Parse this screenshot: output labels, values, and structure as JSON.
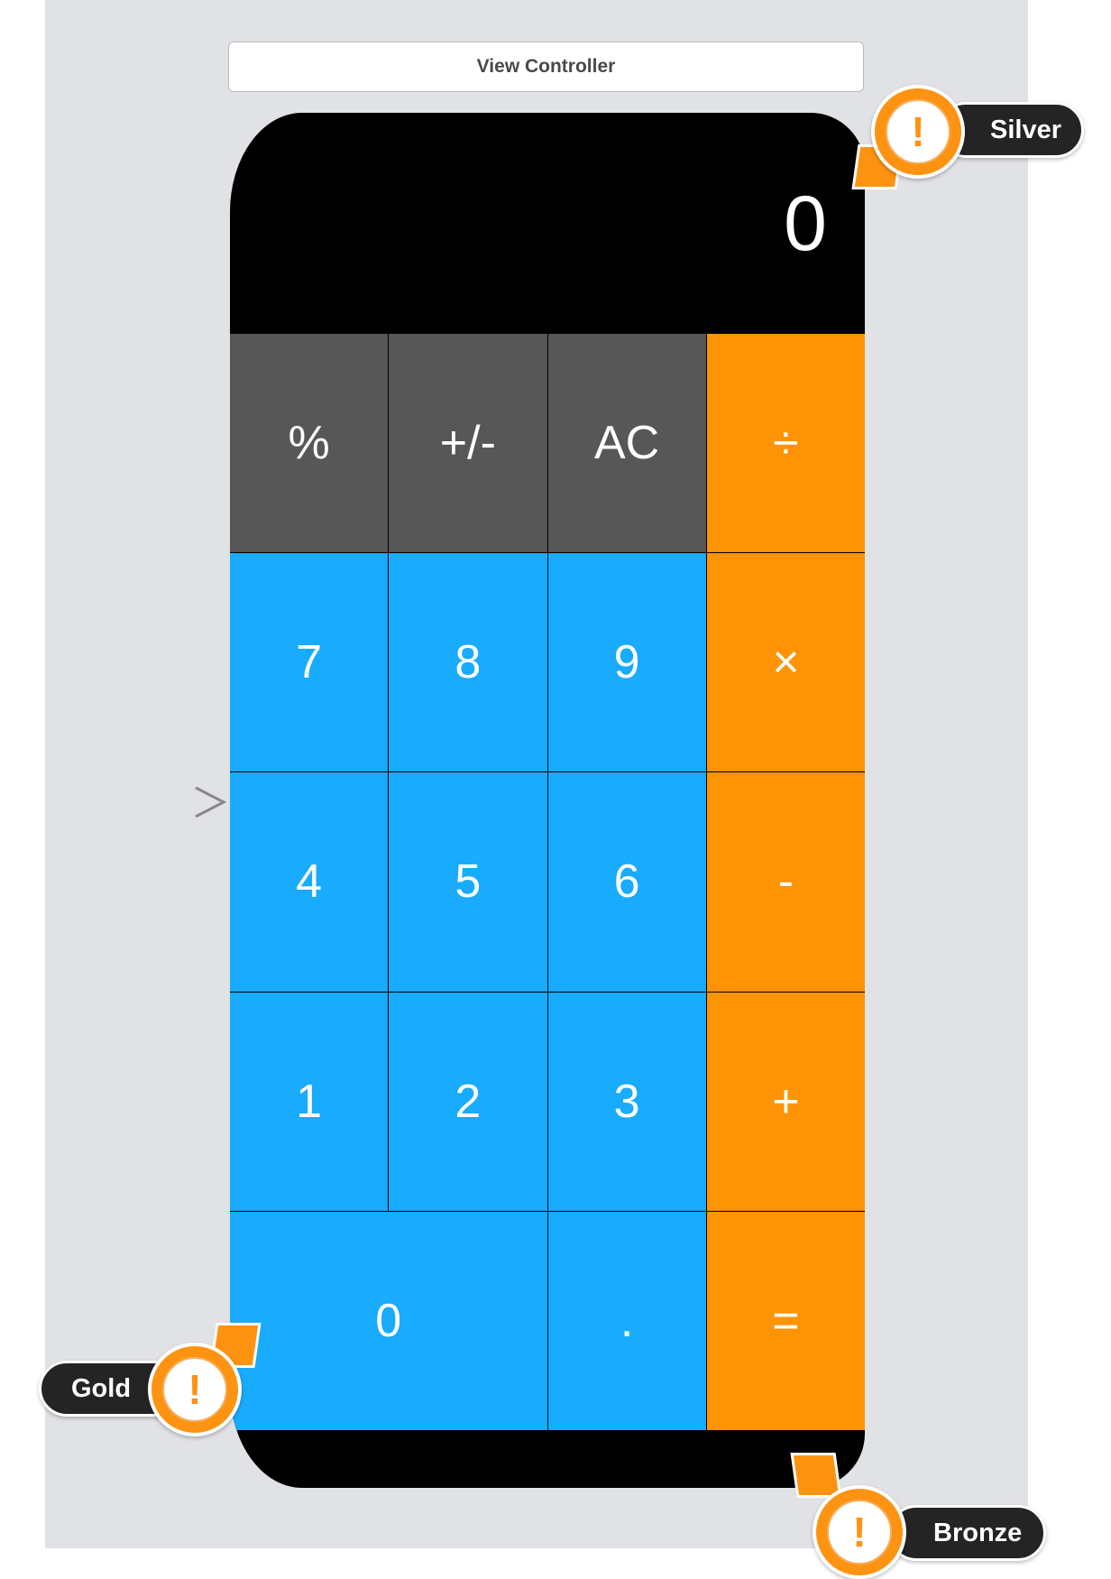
{
  "scene": {
    "title": "View Controller"
  },
  "calculator": {
    "display": "0",
    "keys": [
      {
        "label": "%",
        "kind": "function"
      },
      {
        "label": "+/-",
        "kind": "function"
      },
      {
        "label": "AC",
        "kind": "function"
      },
      {
        "label": "÷",
        "kind": "operator"
      },
      {
        "label": "7",
        "kind": "number"
      },
      {
        "label": "8",
        "kind": "number"
      },
      {
        "label": "9",
        "kind": "number"
      },
      {
        "label": "×",
        "kind": "operator"
      },
      {
        "label": "4",
        "kind": "number"
      },
      {
        "label": "5",
        "kind": "number"
      },
      {
        "label": "6",
        "kind": "number"
      },
      {
        "label": "-",
        "kind": "operator"
      },
      {
        "label": "1",
        "kind": "number"
      },
      {
        "label": "2",
        "kind": "number"
      },
      {
        "label": "3",
        "kind": "number"
      },
      {
        "label": "+",
        "kind": "operator"
      },
      {
        "label": "0",
        "kind": "number"
      },
      {
        "label": ".",
        "kind": "number"
      },
      {
        "label": "=",
        "kind": "operator"
      }
    ],
    "colors": {
      "function": "#575757",
      "number": "#19abfd",
      "operator": "#fe9305"
    }
  },
  "badges": [
    {
      "label": "Silver",
      "icon": "warning-exclamation-icon"
    },
    {
      "label": "Gold",
      "icon": "warning-exclamation-icon"
    },
    {
      "label": "Bronze",
      "icon": "warning-exclamation-icon"
    }
  ],
  "entry_point": {
    "icon": "entry-arrow-icon"
  }
}
